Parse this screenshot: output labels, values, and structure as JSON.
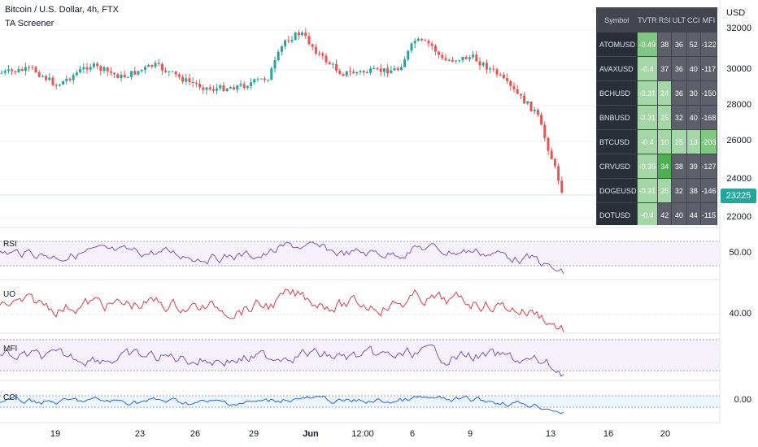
{
  "legend": {
    "title": "Bitcoin / U.S. Dollar, 4h, FTX",
    "indicator": "TA Screener"
  },
  "price_axis": {
    "currency": "USD",
    "levels": [
      "32000",
      "30000",
      "28000",
      "26000",
      "24000",
      "22000"
    ],
    "last_price": "23225"
  },
  "panes": {
    "rsi": {
      "label": "RSI",
      "value": "50.00"
    },
    "uo": {
      "label": "UO",
      "value": "40.00"
    },
    "mfi": {
      "label": "MFI"
    },
    "cci": {
      "label": "CCI",
      "value": "0.00"
    }
  },
  "time_axis": {
    "labels": [
      "19",
      "23",
      "26",
      "29",
      "Jun",
      "12:00",
      "6",
      "9",
      "13",
      "16",
      "20"
    ]
  },
  "screener": {
    "headers": [
      "Symbol",
      "TVTR",
      "RSI",
      "ULT",
      "CCI",
      "MFI"
    ],
    "rows": [
      {
        "symbol": "ATOMUSD",
        "tvtr": "-0.49",
        "rsi": "38",
        "ult": "36",
        "cci": "52",
        "mfi": "-122"
      },
      {
        "symbol": "AVAXUSD",
        "tvtr": "-0.4",
        "rsi": "37",
        "ult": "36",
        "cci": "40",
        "mfi": "-117"
      },
      {
        "symbol": "BCHUSD",
        "tvtr": "-0.31",
        "rsi": "24",
        "ult": "36",
        "cci": "30",
        "mfi": "-150"
      },
      {
        "symbol": "BNBUSD",
        "tvtr": "-0.31",
        "rsi": "25",
        "ult": "32",
        "cci": "40",
        "mfi": "-168"
      },
      {
        "symbol": "BTCUSD",
        "tvtr": "-0.4",
        "rsi": "10",
        "ult": "25",
        "cci": "13",
        "mfi": "-203"
      },
      {
        "symbol": "CRVUSD",
        "tvtr": "-0.35",
        "rsi": "34",
        "ult": "38",
        "cci": "39",
        "mfi": "-127"
      },
      {
        "symbol": "DOGEUSD",
        "tvtr": "-0.31",
        "rsi": "25",
        "ult": "32",
        "cci": "38",
        "mfi": "-146"
      },
      {
        "symbol": "DOTUSD",
        "tvtr": "-0.4",
        "rsi": "42",
        "ult": "40",
        "cci": "44",
        "mfi": "-115"
      }
    ]
  },
  "colors": {
    "up": "#26a69a",
    "down": "#ef5350",
    "rsi_line": "#7e57c2",
    "uo_line": "#f23645",
    "mfi_line": "#7e57c2",
    "cci_line": "#2962ff"
  }
}
